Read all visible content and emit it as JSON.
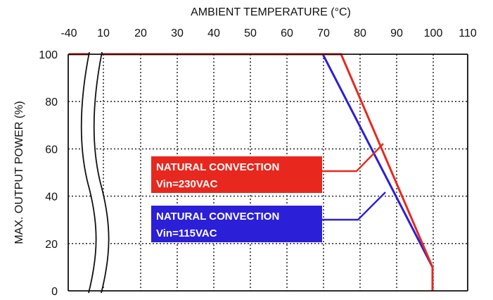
{
  "chart_data": {
    "type": "line",
    "title": "",
    "xlabel": "AMBIENT TEMPERATURE (°C)",
    "ylabel": "MAX. OUTPUT POWER (%)",
    "x_ticks": [
      "-40",
      "10",
      "20",
      "30",
      "40",
      "50",
      "60",
      "70",
      "80",
      "90",
      "100",
      "110"
    ],
    "y_ticks": [
      "0",
      "20",
      "40",
      "60",
      "80",
      "100"
    ],
    "xlim": [
      -40,
      110
    ],
    "ylim": [
      0,
      100
    ],
    "x_axis_break": "between -40 and 10",
    "grid": true,
    "series": [
      {
        "name": "NATURAL CONVECTION Vin=230VAC",
        "label_lines": [
          "NATURAL CONVECTION",
          "Vin=230VAC"
        ],
        "color": "#e8281e",
        "points": [
          [
            -40,
            100
          ],
          [
            75,
            100
          ],
          [
            100,
            10
          ],
          [
            100,
            0
          ]
        ]
      },
      {
        "name": "NATURAL CONVECTION Vin=115VAC",
        "label_lines": [
          "NATURAL CONVECTION",
          "Vin=115VAC"
        ],
        "color": "#2b1fd8",
        "points": [
          [
            -40,
            100
          ],
          [
            70,
            100
          ],
          [
            100,
            10
          ],
          [
            100,
            0
          ]
        ]
      }
    ]
  }
}
